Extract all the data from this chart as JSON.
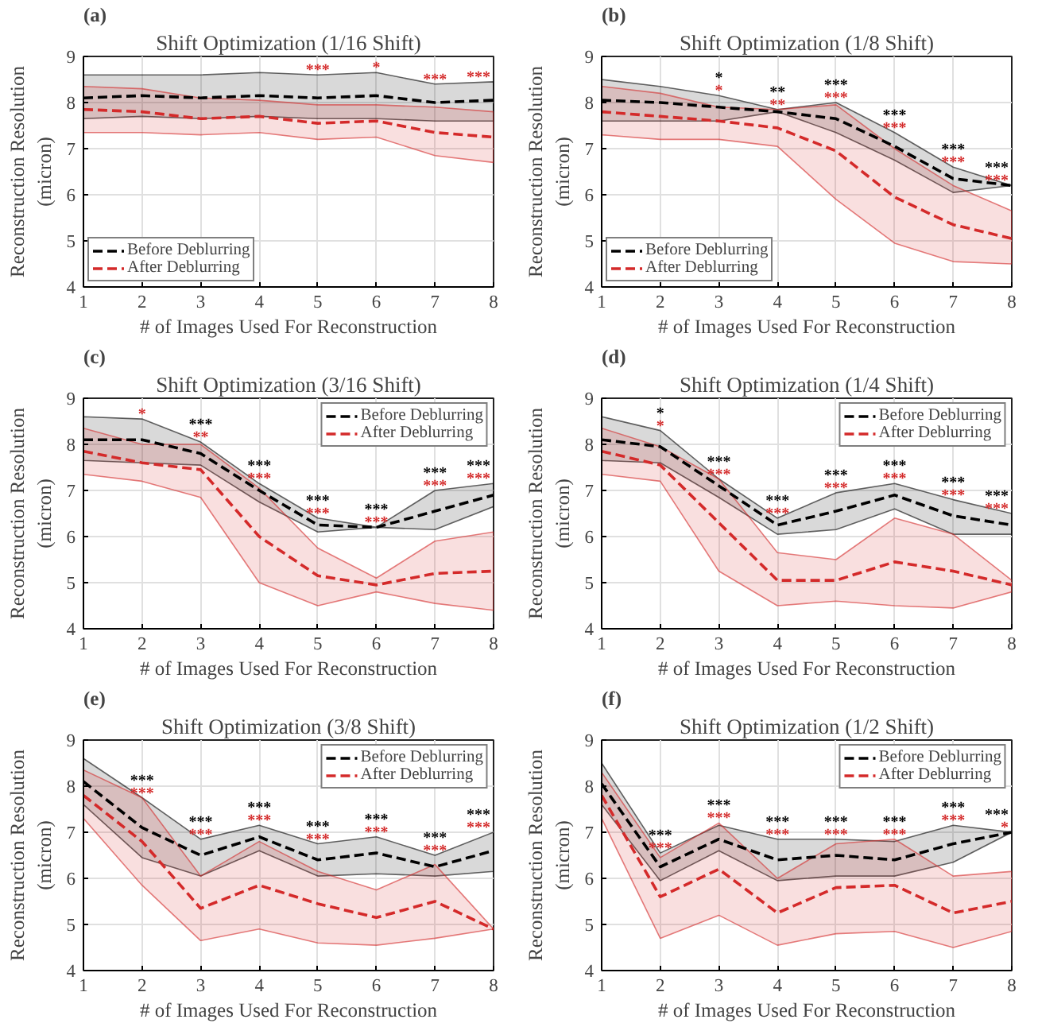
{
  "chart_data": [
    {
      "type": "line",
      "title": "Shift Optimization (1/16 Shift)",
      "xlabel": "# of Images Used For Reconstruction",
      "ylabel": "Reconstruction Resolution\n(micron)",
      "x": [
        1,
        2,
        3,
        4,
        5,
        6,
        7,
        8
      ],
      "xlim": [
        1,
        8
      ],
      "ylim": [
        4,
        9
      ],
      "xticks": [
        1,
        2,
        3,
        4,
        5,
        6,
        7,
        8
      ],
      "yticks": [
        4,
        5,
        6,
        7,
        8,
        9
      ],
      "grid": true,
      "legend": "bottom left",
      "line_style": "dashed",
      "series": [
        {
          "name": "Before Deblurring",
          "color": "#000000",
          "values": [
            8.1,
            8.15,
            8.1,
            8.15,
            8.1,
            8.15,
            8.0,
            8.05
          ],
          "lower": [
            7.65,
            7.7,
            7.65,
            7.7,
            7.65,
            7.65,
            7.6,
            7.6
          ],
          "upper": [
            8.6,
            8.6,
            8.6,
            8.65,
            8.6,
            8.65,
            8.4,
            8.45
          ]
        },
        {
          "name": "After Deblurring",
          "color": "#d42a2a",
          "values": [
            7.85,
            7.8,
            7.65,
            7.7,
            7.55,
            7.6,
            7.35,
            7.25
          ],
          "lower": [
            7.35,
            7.35,
            7.3,
            7.35,
            7.2,
            7.25,
            6.85,
            6.7
          ],
          "upper": [
            8.35,
            8.3,
            8.1,
            8.05,
            7.95,
            7.95,
            7.9,
            7.8
          ]
        }
      ],
      "annotations": [
        "(a)",
        {
          "text": "***",
          "x": 5,
          "y": 8.6
        },
        {
          "text": "*",
          "x": 6,
          "y": 8.65
        },
        {
          "text": "***",
          "x": 7,
          "y": 8.4
        },
        {
          "text": "***",
          "x": 8,
          "y": 8.45
        }
      ]
    },
    {
      "type": "line",
      "title": "Shift Optimization (1/8 Shift)",
      "xlabel": "# of Images Used For Reconstruction",
      "ylabel": "Reconstruction Resolution\n(micron)",
      "x": [
        1,
        2,
        3,
        4,
        5,
        6,
        7,
        8
      ],
      "xlim": [
        1,
        8
      ],
      "ylim": [
        4,
        9
      ],
      "xticks": [
        1,
        2,
        3,
        4,
        5,
        6,
        7,
        8
      ],
      "yticks": [
        4,
        5,
        6,
        7,
        8,
        9
      ],
      "grid": true,
      "legend": "bottom left",
      "line_style": "dashed",
      "series": [
        {
          "name": "Before Deblurring",
          "color": "#000000",
          "values": [
            8.05,
            8.0,
            7.9,
            7.8,
            7.65,
            7.05,
            6.35,
            6.2
          ],
          "lower": [
            7.6,
            7.6,
            7.6,
            7.8,
            7.35,
            6.75,
            6.05,
            6.2
          ],
          "upper": [
            8.5,
            8.35,
            8.15,
            7.85,
            8.0,
            7.35,
            6.6,
            6.2
          ]
        },
        {
          "name": "After Deblurring",
          "color": "#d42a2a",
          "values": [
            7.8,
            7.7,
            7.6,
            7.45,
            6.95,
            5.95,
            5.35,
            5.05
          ],
          "lower": [
            7.3,
            7.2,
            7.2,
            7.05,
            5.9,
            4.95,
            4.55,
            4.5
          ],
          "upper": [
            8.35,
            8.2,
            7.9,
            7.85,
            7.95,
            7.0,
            6.2,
            5.65
          ]
        }
      ],
      "annotations": [
        "(b)",
        {
          "text": "*",
          "x": 3,
          "y": 8.15
        },
        {
          "text": "*",
          "x": 3,
          "y": 8.15
        },
        {
          "text": "**",
          "x": 4,
          "y": 7.85
        },
        {
          "text": "**",
          "x": 4,
          "y": 7.85
        },
        {
          "text": "***",
          "x": 5,
          "y": 8.0
        },
        {
          "text": "***",
          "x": 5,
          "y": 8.0
        },
        {
          "text": "***",
          "x": 6,
          "y": 7.35
        },
        {
          "text": "***",
          "x": 6,
          "y": 7.35
        },
        {
          "text": "***",
          "x": 7,
          "y": 6.6
        },
        {
          "text": "***",
          "x": 7,
          "y": 6.6
        },
        {
          "text": "***",
          "x": 8,
          "y": 6.2
        },
        {
          "text": "***",
          "x": 8,
          "y": 6.2
        }
      ]
    },
    {
      "type": "line",
      "title": "Shift Optimization (3/16 Shift)",
      "xlabel": "# of Images Used For Reconstruction",
      "ylabel": "Reconstruction Resolution\n(micron)",
      "x": [
        1,
        2,
        3,
        4,
        5,
        6,
        7,
        8
      ],
      "xlim": [
        1,
        8
      ],
      "ylim": [
        4,
        9
      ],
      "xticks": [
        1,
        2,
        3,
        4,
        5,
        6,
        7,
        8
      ],
      "yticks": [
        4,
        5,
        6,
        7,
        8,
        9
      ],
      "grid": true,
      "legend": "top right",
      "line_style": "dashed",
      "series": [
        {
          "name": "Before Deblurring",
          "color": "#000000",
          "values": [
            8.1,
            8.1,
            7.8,
            7.0,
            6.25,
            6.2,
            6.55,
            6.9
          ],
          "lower": [
            7.65,
            7.6,
            7.55,
            6.75,
            6.1,
            6.2,
            6.15,
            6.65
          ],
          "upper": [
            8.6,
            8.55,
            8.05,
            7.15,
            6.4,
            6.2,
            7.0,
            7.15
          ]
        },
        {
          "name": "After Deblurring",
          "color": "#d42a2a",
          "values": [
            7.85,
            7.6,
            7.45,
            6.0,
            5.15,
            4.95,
            5.2,
            5.25
          ],
          "lower": [
            7.35,
            7.2,
            6.85,
            5.0,
            4.5,
            4.8,
            4.55,
            4.4
          ],
          "upper": [
            8.35,
            8.0,
            8.0,
            7.05,
            5.75,
            5.1,
            5.9,
            6.1
          ]
        }
      ],
      "annotations": [
        "(c)",
        {
          "text": "*",
          "x": 2,
          "y": 8.55
        },
        {
          "text": "***",
          "x": 3,
          "y": 8.05
        },
        {
          "text": "**",
          "x": 3,
          "y": 8.05
        },
        {
          "text": "***",
          "x": 4,
          "y": 7.15
        },
        {
          "text": "***",
          "x": 4,
          "y": 7.15
        },
        {
          "text": "***",
          "x": 5,
          "y": 6.4
        },
        {
          "text": "***",
          "x": 5,
          "y": 6.4
        },
        {
          "text": "***",
          "x": 6,
          "y": 6.2
        },
        {
          "text": "***",
          "x": 6,
          "y": 6.2
        },
        {
          "text": "***",
          "x": 7,
          "y": 7.0
        },
        {
          "text": "***",
          "x": 7,
          "y": 7.0
        },
        {
          "text": "***",
          "x": 8,
          "y": 7.15
        },
        {
          "text": "***",
          "x": 8,
          "y": 7.15
        }
      ]
    },
    {
      "type": "line",
      "title": "Shift Optimization (1/4 Shift)",
      "xlabel": "# of Images Used For Reconstruction",
      "ylabel": "Reconstruction Resolution\n(micron)",
      "x": [
        1,
        2,
        3,
        4,
        5,
        6,
        7,
        8
      ],
      "xlim": [
        1,
        8
      ],
      "ylim": [
        4,
        9
      ],
      "xticks": [
        1,
        2,
        3,
        4,
        5,
        6,
        7,
        8
      ],
      "yticks": [
        4,
        5,
        6,
        7,
        8,
        9
      ],
      "grid": true,
      "legend": "top right",
      "line_style": "dashed",
      "series": [
        {
          "name": "Before Deblurring",
          "color": "#000000",
          "values": [
            8.1,
            7.95,
            7.1,
            6.25,
            6.55,
            6.9,
            6.45,
            6.25
          ],
          "lower": [
            7.65,
            7.6,
            6.85,
            6.05,
            6.15,
            6.6,
            6.05,
            6.05
          ],
          "upper": [
            8.6,
            8.3,
            7.25,
            6.4,
            6.95,
            7.15,
            6.8,
            6.5
          ]
        },
        {
          "name": "After Deblurring",
          "color": "#d42a2a",
          "values": [
            7.85,
            7.55,
            6.3,
            5.05,
            5.05,
            5.45,
            5.25,
            4.95
          ],
          "lower": [
            7.35,
            7.2,
            5.25,
            4.5,
            4.6,
            4.5,
            4.45,
            4.8
          ],
          "upper": [
            8.35,
            7.95,
            7.25,
            5.65,
            5.5,
            6.4,
            6.05,
            5.05
          ]
        }
      ],
      "annotations": [
        "(d)",
        {
          "text": "*",
          "x": 2,
          "y": 8.3
        },
        {
          "text": "*",
          "x": 2,
          "y": 8.3
        },
        {
          "text": "***",
          "x": 3,
          "y": 7.25
        },
        {
          "text": "***",
          "x": 3,
          "y": 7.25
        },
        {
          "text": "***",
          "x": 4,
          "y": 6.4
        },
        {
          "text": "***",
          "x": 4,
          "y": 6.4
        },
        {
          "text": "***",
          "x": 5,
          "y": 6.95
        },
        {
          "text": "***",
          "x": 5,
          "y": 6.95
        },
        {
          "text": "***",
          "x": 6,
          "y": 7.15
        },
        {
          "text": "***",
          "x": 6,
          "y": 7.15
        },
        {
          "text": "***",
          "x": 7,
          "y": 6.8
        },
        {
          "text": "***",
          "x": 7,
          "y": 6.8
        },
        {
          "text": "***",
          "x": 8,
          "y": 6.5
        },
        {
          "text": "***",
          "x": 8,
          "y": 6.5
        }
      ]
    },
    {
      "type": "line",
      "title": "Shift Optimization (3/8 Shift)",
      "xlabel": "# of Images Used For Reconstruction",
      "ylabel": "Reconstruction Resolution\n(micron)",
      "x": [
        1,
        2,
        3,
        4,
        5,
        6,
        7,
        8
      ],
      "xlim": [
        1,
        8
      ],
      "ylim": [
        4,
        9
      ],
      "xticks": [
        1,
        2,
        3,
        4,
        5,
        6,
        7,
        8
      ],
      "yticks": [
        4,
        5,
        6,
        7,
        8,
        9
      ],
      "grid": true,
      "legend": "top right",
      "line_style": "dashed",
      "series": [
        {
          "name": "Before Deblurring",
          "color": "#000000",
          "values": [
            8.1,
            7.1,
            6.5,
            6.9,
            6.4,
            6.55,
            6.25,
            6.6
          ],
          "lower": [
            7.6,
            6.45,
            6.05,
            6.6,
            6.05,
            6.1,
            6.05,
            6.15
          ],
          "upper": [
            8.6,
            7.75,
            6.85,
            7.15,
            6.75,
            6.9,
            6.5,
            7.0
          ]
        },
        {
          "name": "After Deblurring",
          "color": "#d42a2a",
          "values": [
            7.8,
            6.8,
            5.35,
            5.85,
            5.45,
            5.15,
            5.5,
            4.9
          ],
          "lower": [
            7.3,
            5.85,
            4.65,
            4.9,
            4.6,
            4.55,
            4.7,
            4.9
          ],
          "upper": [
            8.35,
            7.75,
            6.05,
            6.8,
            6.15,
            5.75,
            6.3,
            4.9
          ]
        }
      ],
      "annotations": [
        "(e)",
        {
          "text": "***",
          "x": 2,
          "y": 7.75
        },
        {
          "text": "***",
          "x": 2,
          "y": 7.75
        },
        {
          "text": "***",
          "x": 3,
          "y": 6.85
        },
        {
          "text": "***",
          "x": 3,
          "y": 6.85
        },
        {
          "text": "***",
          "x": 4,
          "y": 7.15
        },
        {
          "text": "***",
          "x": 4,
          "y": 7.15
        },
        {
          "text": "***",
          "x": 5,
          "y": 6.75
        },
        {
          "text": "***",
          "x": 5,
          "y": 6.75
        },
        {
          "text": "***",
          "x": 6,
          "y": 6.9
        },
        {
          "text": "***",
          "x": 6,
          "y": 6.9
        },
        {
          "text": "***",
          "x": 7,
          "y": 6.5
        },
        {
          "text": "***",
          "x": 7,
          "y": 6.5
        },
        {
          "text": "***",
          "x": 8,
          "y": 7.0
        },
        {
          "text": "***",
          "x": 8,
          "y": 7.0
        }
      ]
    },
    {
      "type": "line",
      "title": "Shift Optimization (1/2 Shift)",
      "xlabel": "# of Images Used For Reconstruction",
      "ylabel": "Reconstruction Resolution\n(micron)",
      "x": [
        1,
        2,
        3,
        4,
        5,
        6,
        7,
        8
      ],
      "xlim": [
        1,
        8
      ],
      "ylim": [
        4,
        9
      ],
      "xticks": [
        1,
        2,
        3,
        4,
        5,
        6,
        7,
        8
      ],
      "yticks": [
        4,
        5,
        6,
        7,
        8,
        9
      ],
      "grid": true,
      "legend": "top right",
      "line_style": "dashed",
      "series": [
        {
          "name": "Before Deblurring",
          "color": "#000000",
          "values": [
            8.05,
            6.25,
            6.85,
            6.4,
            6.5,
            6.4,
            6.75,
            7.0
          ],
          "lower": [
            7.6,
            5.95,
            6.6,
            5.95,
            6.05,
            6.05,
            6.35,
            7.0
          ],
          "upper": [
            8.5,
            6.55,
            7.15,
            6.85,
            6.85,
            6.8,
            7.15,
            7.0
          ]
        },
        {
          "name": "After Deblurring",
          "color": "#d42a2a",
          "values": [
            7.8,
            5.6,
            6.2,
            5.25,
            5.8,
            5.85,
            5.25,
            5.5
          ],
          "lower": [
            7.3,
            4.7,
            5.2,
            4.55,
            4.8,
            4.85,
            4.5,
            4.85
          ],
          "upper": [
            8.3,
            6.45,
            7.2,
            6.0,
            6.75,
            6.85,
            6.05,
            6.15
          ]
        }
      ],
      "annotations": [
        "(f)",
        {
          "text": "***",
          "x": 2,
          "y": 6.55
        },
        {
          "text": "***",
          "x": 2,
          "y": 6.55
        },
        {
          "text": "***",
          "x": 3,
          "y": 7.2
        },
        {
          "text": "***",
          "x": 3,
          "y": 7.2
        },
        {
          "text": "***",
          "x": 4,
          "y": 6.85
        },
        {
          "text": "***",
          "x": 4,
          "y": 6.85
        },
        {
          "text": "***",
          "x": 5,
          "y": 6.85
        },
        {
          "text": "***",
          "x": 5,
          "y": 6.85
        },
        {
          "text": "***",
          "x": 6,
          "y": 6.85
        },
        {
          "text": "***",
          "x": 6,
          "y": 6.85
        },
        {
          "text": "***",
          "x": 7,
          "y": 7.15
        },
        {
          "text": "***",
          "x": 7,
          "y": 7.15
        },
        {
          "text": "***",
          "x": 8,
          "y": 7.0
        },
        {
          "text": "*",
          "x": 8,
          "y": 7.0
        }
      ]
    }
  ]
}
